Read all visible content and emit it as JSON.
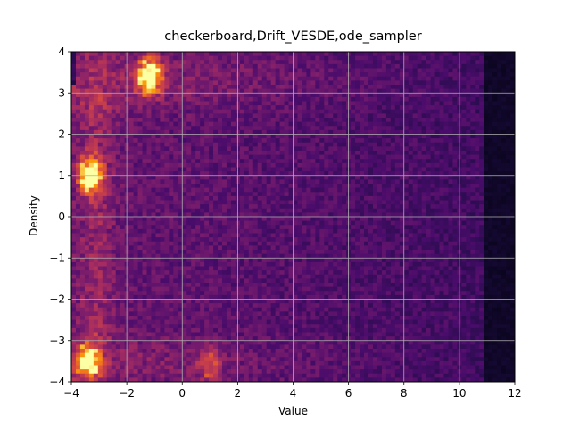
{
  "chart_data": {
    "type": "heatmap",
    "title": "checkerboard,Drift_VESDE,ode_sampler",
    "xlabel": "Value",
    "ylabel": "Density",
    "xlim": [
      -4,
      12
    ],
    "ylim": [
      -4,
      4
    ],
    "xticks": [
      -4,
      -2,
      0,
      2,
      4,
      6,
      8,
      10,
      12
    ],
    "yticks": [
      -4,
      -3,
      -2,
      -1,
      0,
      1,
      2,
      3,
      4
    ],
    "xtick_labels": [
      "−4",
      "−2",
      "0",
      "2",
      "4",
      "6",
      "8",
      "10",
      "12"
    ],
    "ytick_labels": [
      "−4",
      "−3",
      "−2",
      "−1",
      "0",
      "1",
      "2",
      "3",
      "4"
    ],
    "grid": true,
    "colormap": "inferno",
    "bins": [
      100,
      80
    ],
    "hotspots": [
      {
        "x": -1.2,
        "y": 3.4,
        "intensity": 1.0
      },
      {
        "x": -3.3,
        "y": 1.0,
        "intensity": 0.95
      },
      {
        "x": -3.4,
        "y": -3.5,
        "intensity": 0.85
      },
      {
        "x": 1.0,
        "y": -3.6,
        "intensity": 0.35
      }
    ]
  }
}
